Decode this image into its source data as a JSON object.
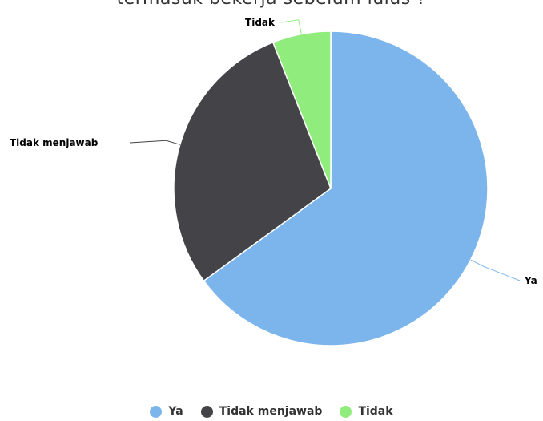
{
  "chart_data": {
    "type": "pie",
    "title": "termasuk bekerja sebelum lulus ?",
    "series": [
      {
        "name": "",
        "points": [
          {
            "label": "Ya",
            "value": 65,
            "color": "#7cb5ec"
          },
          {
            "label": "Tidak menjawab",
            "value": 29,
            "color": "#434348"
          },
          {
            "label": "Tidak",
            "value": 6,
            "color": "#90ed7d"
          }
        ]
      }
    ],
    "legend": {
      "position": "bottom-center",
      "items": [
        "Ya",
        "Tidak menjawab",
        "Tidak"
      ]
    }
  }
}
